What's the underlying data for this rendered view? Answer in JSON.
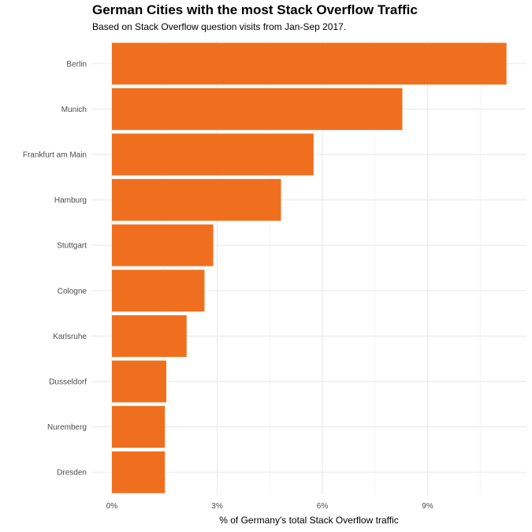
{
  "chart_data": {
    "type": "bar",
    "orientation": "horizontal",
    "title": "German Cities with the most Stack Overflow Traffic",
    "subtitle": "Based on Stack Overflow question visits from Jan-Sep 2017.",
    "xlabel": "% of Germany's total Stack Overflow traffic",
    "ylabel": "",
    "categories": [
      "Berlin",
      "Munich",
      "Frankfurt am Main",
      "Hamburg",
      "Stuttgart",
      "Cologne",
      "Karlsruhe",
      "Dusseldorf",
      "Nuremberg",
      "Dresden"
    ],
    "values": [
      11.25,
      8.28,
      5.75,
      4.82,
      2.89,
      2.64,
      2.13,
      1.55,
      1.51,
      1.51
    ],
    "xlim": [
      0,
      11.8
    ],
    "xticks": [
      0,
      3,
      6,
      9
    ],
    "xtick_labels": [
      "0%",
      "3%",
      "6%",
      "9%"
    ],
    "grid": true,
    "legend": "none",
    "bar_color": "#f06f1f",
    "grid_color": "#ebebeb"
  }
}
